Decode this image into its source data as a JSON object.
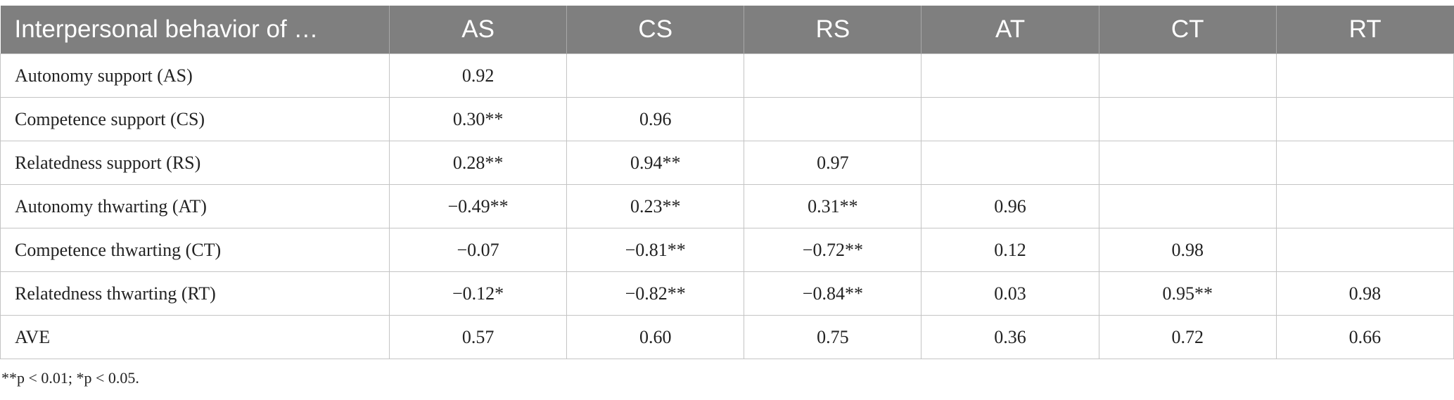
{
  "table": {
    "header": [
      "Interpersonal behavior of …",
      "AS",
      "CS",
      "RS",
      "AT",
      "CT",
      "RT"
    ],
    "rows": [
      [
        "Autonomy support (AS)",
        "0.92"
      ],
      [
        "Competence support (CS)",
        "0.30**",
        "0.96"
      ],
      [
        "Relatedness support (RS)",
        "0.28**",
        "0.94**",
        "0.97"
      ],
      [
        "Autonomy thwarting (AT)",
        "−0.49**",
        "0.23**",
        "0.31**",
        "0.96"
      ],
      [
        "Competence thwarting (CT)",
        "−0.07",
        "−0.81**",
        "−0.72**",
        "0.12",
        "0.98"
      ],
      [
        "Relatedness thwarting (RT)",
        "−0.12*",
        "−0.82**",
        "−0.84**",
        "0.03",
        "0.95**",
        "0.98"
      ],
      [
        "AVE",
        "0.57",
        "0.60",
        "0.75",
        "0.36",
        "0.72",
        "0.66"
      ]
    ],
    "footnote": "**p < 0.01; *p < 0.05."
  }
}
